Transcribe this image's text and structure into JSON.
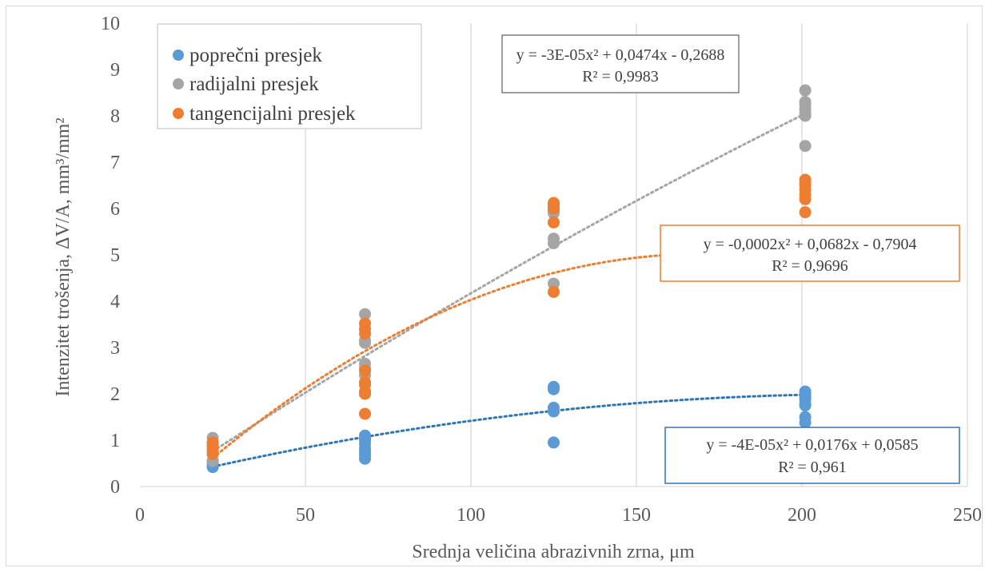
{
  "chart_data": {
    "type": "scatter",
    "xlabel": "Srednja veličina abrazivnih zrna, μm",
    "ylabel": "Intenzitet trošenja, ΔV/A, mm³/mm²",
    "xlim": [
      0,
      250
    ],
    "ylim": [
      0,
      10
    ],
    "x_ticks": [
      "0",
      "50",
      "100",
      "150",
      "200",
      "250"
    ],
    "y_ticks": [
      "0",
      "1",
      "2",
      "3",
      "4",
      "5",
      "6",
      "7",
      "8",
      "9",
      "10"
    ],
    "grid": "vertical",
    "legend_position": "top-left",
    "series": [
      {
        "name": "poprečni presjek",
        "color": "#5b9bd5",
        "trend_color": "#2e75b6",
        "x": [
          22,
          22,
          22,
          22,
          68,
          68,
          68,
          68,
          68,
          68,
          68,
          68,
          125,
          125,
          125,
          125,
          125,
          201,
          201,
          201,
          201,
          201,
          201,
          201,
          201
        ],
        "y": [
          0.42,
          0.45,
          0.5,
          0.55,
          0.6,
          0.68,
          0.75,
          0.82,
          0.92,
          1.0,
          1.05,
          1.1,
          0.95,
          1.62,
          1.7,
          2.1,
          2.15,
          1.38,
          1.5,
          1.75,
          1.78,
          1.88,
          1.93,
          2.0,
          2.05
        ],
        "trendline": {
          "a": -4e-05,
          "b": 0.0176,
          "c": 0.0585,
          "x_from": 22,
          "x_to": 201
        },
        "equation": "y = -4E-05x² + 0,0176x + 0,0585",
        "r2": "R² = 0,961"
      },
      {
        "name": "radijalni presjek",
        "color": "#a5a5a5",
        "trend_color": "#a5a5a5",
        "x": [
          22,
          22,
          22,
          22,
          68,
          68,
          68,
          68,
          68,
          68,
          125,
          125,
          125,
          125,
          125,
          201,
          201,
          201,
          201,
          201,
          201,
          201
        ],
        "y": [
          0.55,
          0.75,
          0.95,
          1.05,
          2.4,
          2.55,
          2.65,
          3.1,
          3.15,
          3.72,
          4.38,
          5.25,
          5.35,
          5.9,
          5.95,
          7.35,
          8.0,
          8.05,
          8.15,
          8.25,
          8.3,
          8.55
        ],
        "trendline": {
          "a": -3e-05,
          "b": 0.0474,
          "c": -0.2688,
          "x_from": 22,
          "x_to": 201
        },
        "equation": "y = -3E-05x² + 0,0474x - 0,2688",
        "r2": "R² = 0,9983"
      },
      {
        "name": "tangencijalni presjek",
        "color": "#ed7d31",
        "trend_color": "#ed7d31",
        "x": [
          22,
          22,
          22,
          22,
          22,
          68,
          68,
          68,
          68,
          68,
          68,
          68,
          68,
          68,
          125,
          125,
          125,
          125,
          125,
          125,
          201,
          201,
          201,
          201,
          201,
          201,
          201
        ],
        "y": [
          0.7,
          0.8,
          0.85,
          0.9,
          0.95,
          1.57,
          2.0,
          2.05,
          2.2,
          2.25,
          2.5,
          3.3,
          3.4,
          3.52,
          4.2,
          5.7,
          6.0,
          6.05,
          6.1,
          6.12,
          5.92,
          6.2,
          6.3,
          6.4,
          6.5,
          6.55,
          6.62
        ],
        "trendline": {
          "a": -0.0002,
          "b": 0.0682,
          "c": -0.7904,
          "x_from": 22,
          "x_to": 201
        },
        "equation": "y = -0,0002x² + 0,0682x - 0,7904",
        "r2": "R² = 0,9696"
      }
    ]
  }
}
